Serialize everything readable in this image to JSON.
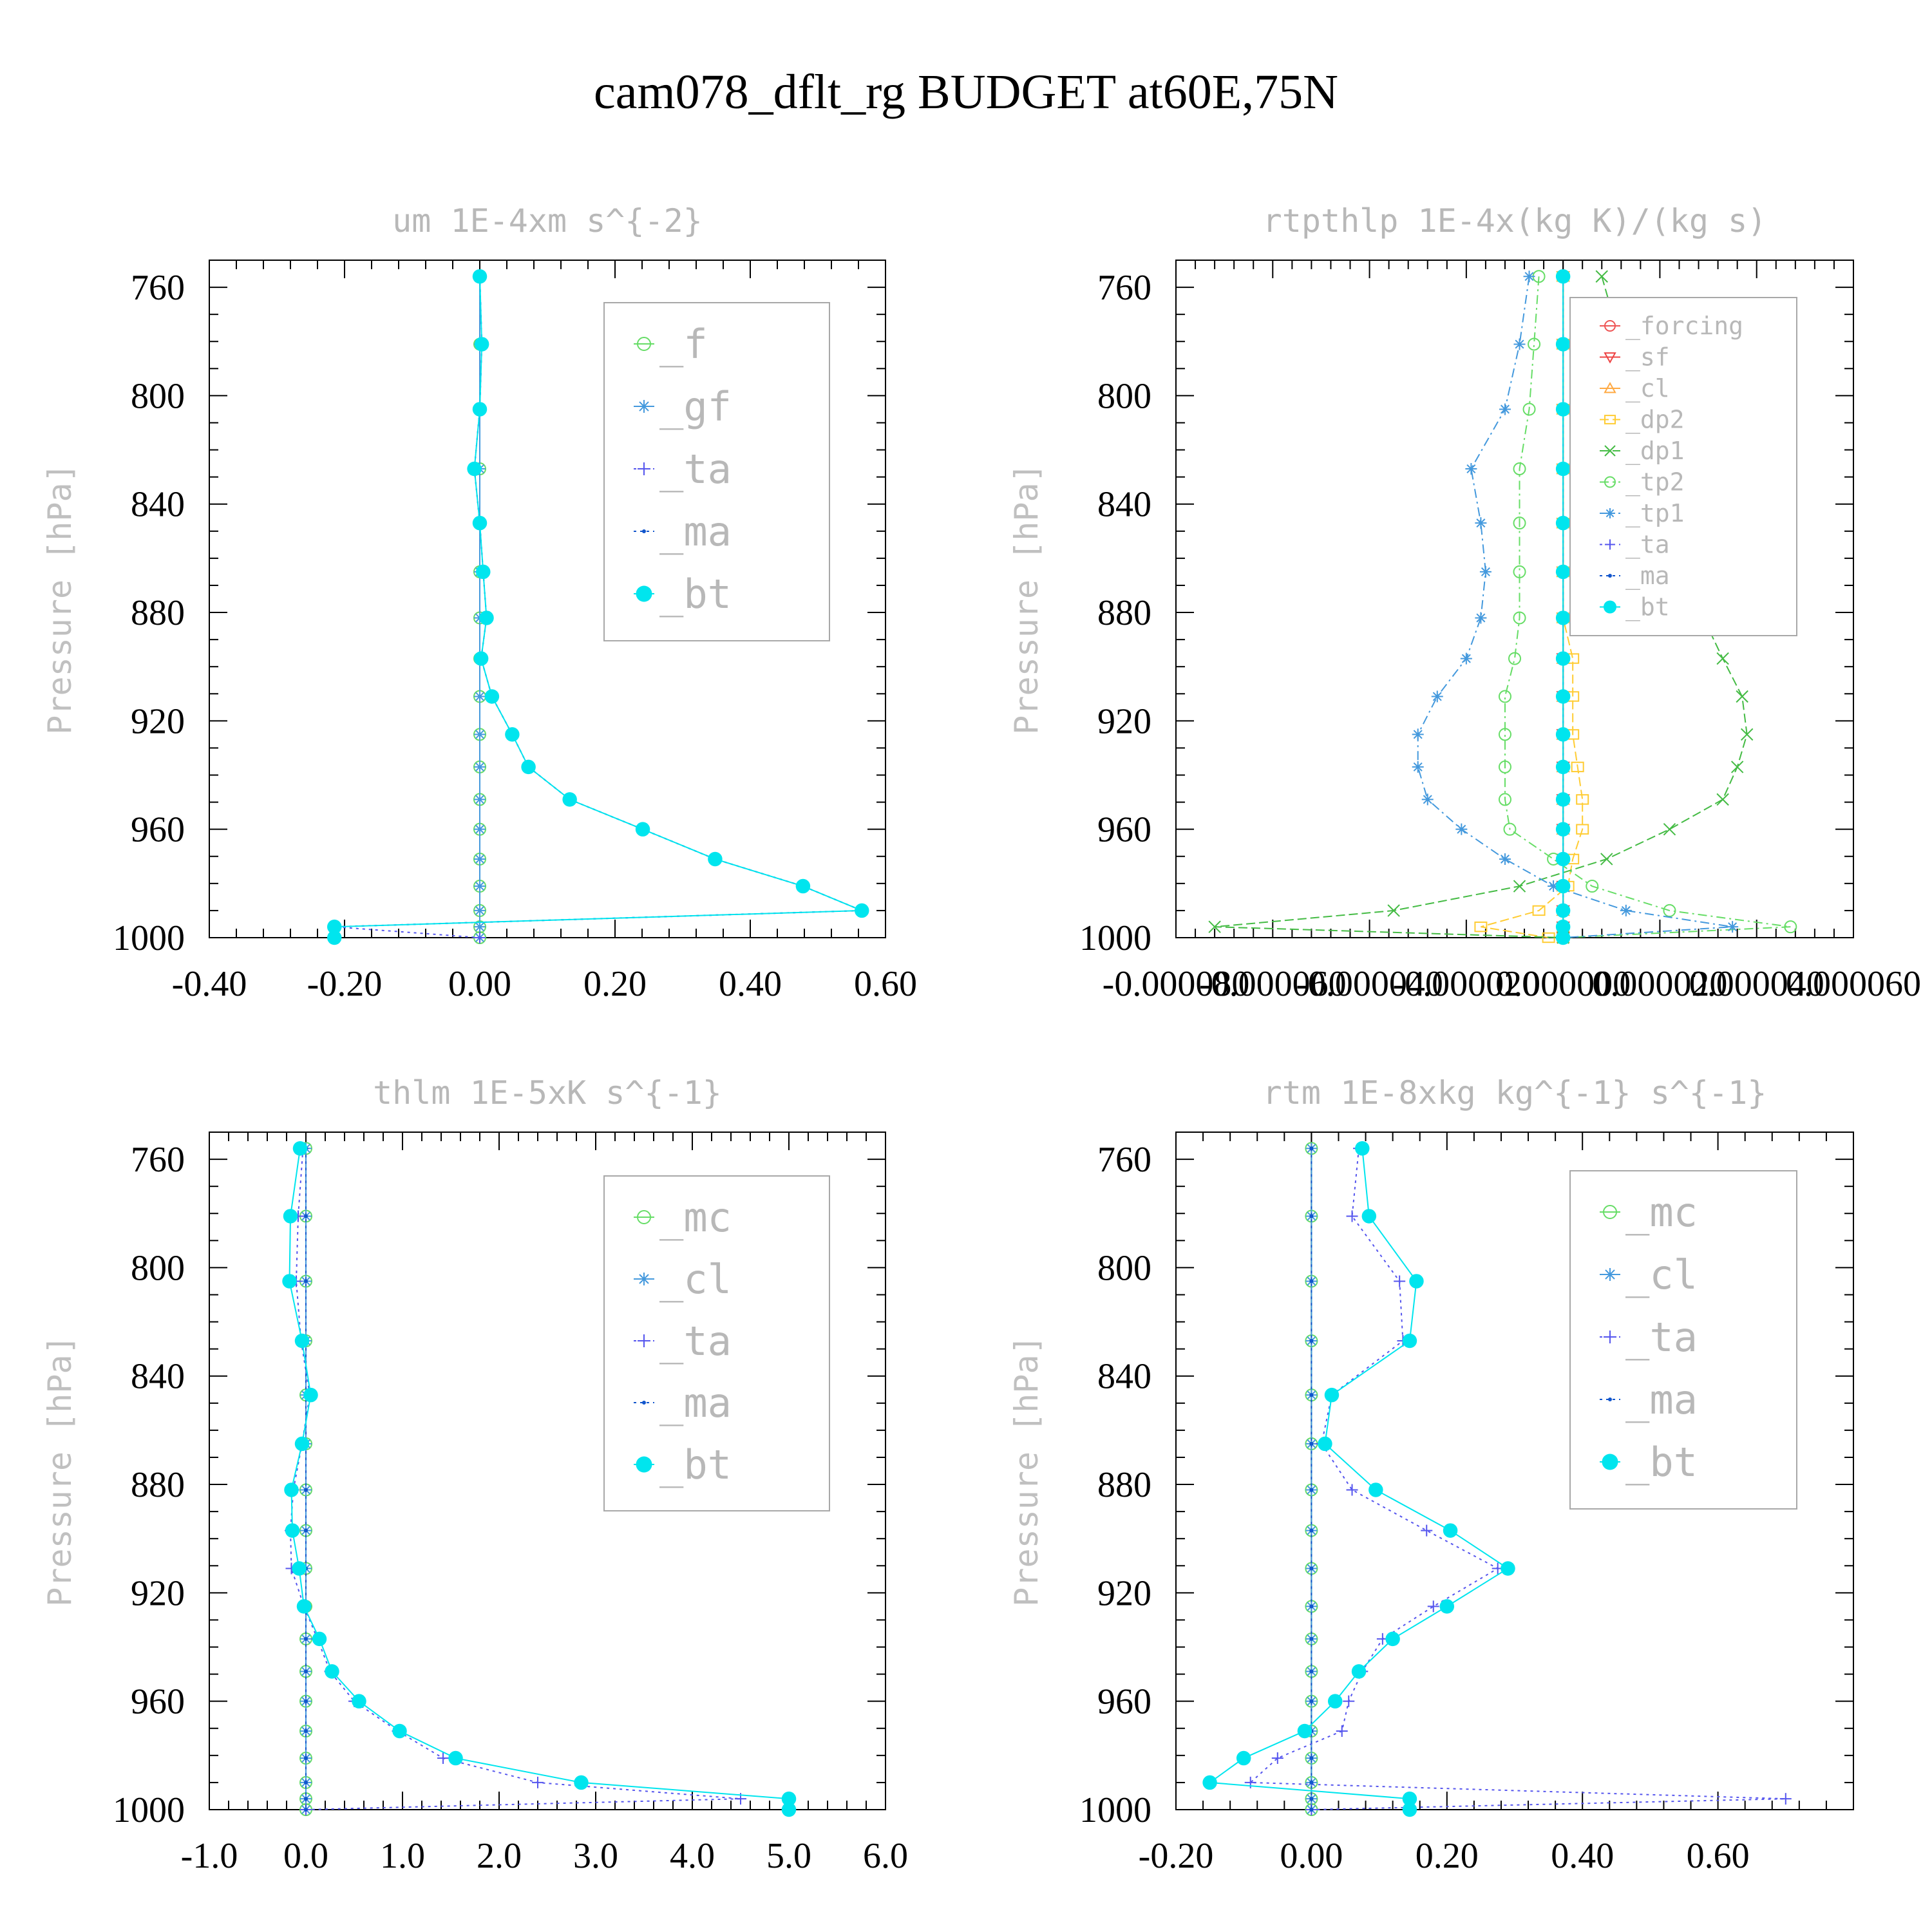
{
  "figure_title": "cam078_dflt_rg  BUDGET at60E,75N",
  "chart_data": [
    {
      "id": "um",
      "type": "line",
      "title": "um  1E-4xm s^{-2}",
      "ylabel": "Pressure [hPa]",
      "xlabel": "",
      "ylim": [
        1000,
        750
      ],
      "xlim": [
        -0.4,
        0.6
      ],
      "xticks": [
        "-0.40",
        "-0.20",
        "0.00",
        "0.20",
        "0.40",
        "0.60"
      ],
      "yticks": [
        "760",
        "800",
        "840",
        "880",
        "920",
        "960",
        "1000"
      ],
      "legend_position": "top-right",
      "levels": [
        756,
        781,
        805,
        827,
        847,
        865,
        882,
        897,
        911,
        925,
        937,
        949,
        960,
        971,
        981,
        990,
        996,
        1000
      ],
      "series": [
        {
          "name": "_f",
          "color": "#66dd66",
          "marker": "circle",
          "dash": "none",
          "values": [
            0,
            0,
            0,
            0,
            0,
            0,
            0,
            0,
            0,
            0,
            0,
            0,
            0,
            0,
            0,
            0,
            0,
            0
          ]
        },
        {
          "name": "_gf",
          "color": "#4499dd",
          "marker": "star",
          "dash": "none",
          "values": [
            0,
            0,
            0,
            0,
            0,
            0,
            0,
            0,
            0,
            0,
            0,
            0,
            0,
            0,
            0,
            0,
            0,
            0
          ]
        },
        {
          "name": "_ta",
          "color": "#5555ee",
          "marker": "plus",
          "dash": "4,6",
          "values": [
            0.0,
            0.003,
            0.0,
            -0.008,
            0.0,
            0.005,
            0.01,
            0.002,
            0.018,
            0.048,
            0.072,
            0.133,
            0.241,
            0.348,
            0.478,
            0.565,
            -0.215,
            0.0
          ]
        },
        {
          "name": "_ma",
          "color": "#1155cc",
          "marker": "dot",
          "dash": "4,6",
          "values": [
            0.0,
            0.003,
            0.0,
            -0.008,
            0.0,
            0.005,
            0.01,
            0.002,
            0.018,
            0.048,
            0.072,
            0.133,
            0.241,
            0.348,
            0.478,
            0.565,
            -0.215,
            -0.215
          ]
        },
        {
          "name": "_bt",
          "color": "#00e5ee",
          "marker": "filled",
          "dash": "none",
          "values": [
            0.0,
            0.003,
            0.0,
            -0.008,
            0.0,
            0.005,
            0.01,
            0.002,
            0.018,
            0.048,
            0.072,
            0.133,
            0.241,
            0.348,
            0.478,
            0.565,
            -0.215,
            -0.215
          ]
        }
      ]
    },
    {
      "id": "rtpthlp",
      "type": "line",
      "title": "rtpthlp  1E-4x(kg K)/(kg s)",
      "ylabel": "Pressure [hPa]",
      "xlabel": "",
      "ylim": [
        1000,
        750
      ],
      "xlim": [
        -8e-05,
        6e-05
      ],
      "xticks": [
        "-0.000080",
        "-0.000060",
        "-0.000040",
        "-0.000020",
        "0.000000",
        "0.000020",
        "0.000040",
        "0.000060"
      ],
      "yticks": [
        "760",
        "800",
        "840",
        "880",
        "920",
        "960",
        "1000"
      ],
      "legend_position": "top-right",
      "levels": [
        756,
        781,
        805,
        827,
        847,
        865,
        882,
        897,
        911,
        925,
        937,
        949,
        960,
        971,
        981,
        990,
        996,
        1000
      ],
      "series": [
        {
          "name": "_forcing",
          "color": "#ee5555",
          "marker": "circle",
          "dash": "none",
          "values": [
            0,
            0,
            0,
            0,
            0,
            0,
            0,
            0,
            0,
            0,
            0,
            0,
            0,
            0,
            0,
            0,
            0,
            0
          ]
        },
        {
          "name": "_sf",
          "color": "#ee4444",
          "marker": "tri-down",
          "dash": "none",
          "values": [
            0,
            0,
            0,
            0,
            0,
            0,
            0,
            0,
            0,
            0,
            0,
            0,
            0,
            0,
            0,
            0,
            0,
            0
          ]
        },
        {
          "name": "_cl",
          "color": "#ffaa44",
          "marker": "triangle",
          "dash": "none",
          "values": [
            0,
            0,
            0,
            0,
            0,
            0,
            0,
            0,
            0,
            0,
            0,
            0,
            0,
            0,
            0,
            0,
            0,
            0
          ]
        },
        {
          "name": "_dp2",
          "color": "#ffcc33",
          "marker": "square",
          "dash": "14,6",
          "values": [
            0,
            0,
            0,
            0,
            0,
            0,
            0,
            2e-06,
            2e-06,
            2e-06,
            3e-06,
            4e-06,
            4e-06,
            2e-06,
            1e-06,
            -5e-06,
            -1.7e-05,
            -3e-06
          ]
        },
        {
          "name": "_dp1",
          "color": "#44bb44",
          "marker": "cross",
          "dash": "14,6",
          "values": [
            8e-06,
            1.2e-05,
            1.6e-05,
            1.7e-05,
            2e-05,
            2.4e-05,
            2.9e-05,
            3.3e-05,
            3.7e-05,
            3.8e-05,
            3.6e-05,
            3.3e-05,
            2.2e-05,
            9e-06,
            -9e-06,
            -3.5e-05,
            -7.2e-05,
            0.0
          ]
        },
        {
          "name": "_tp2",
          "color": "#66dd66",
          "marker": "circle",
          "dash": "14,6,3,6",
          "values": [
            -5e-06,
            -6e-06,
            -7e-06,
            -9e-06,
            -9e-06,
            -9e-06,
            -9e-06,
            -1e-05,
            -1.2e-05,
            -1.2e-05,
            -1.2e-05,
            -1.2e-05,
            -1.1e-05,
            -2e-06,
            6e-06,
            2.2e-05,
            4.7e-05,
            0.0
          ]
        },
        {
          "name": "_tp1",
          "color": "#4499dd",
          "marker": "star",
          "dash": "14,6,3,6",
          "values": [
            -7e-06,
            -9e-06,
            -1.2e-05,
            -1.9e-05,
            -1.7e-05,
            -1.6e-05,
            -1.7e-05,
            -2e-05,
            -2.6e-05,
            -3e-05,
            -3e-05,
            -2.8e-05,
            -2.1e-05,
            -1.2e-05,
            -2e-06,
            1.3e-05,
            3.5e-05,
            0.0
          ]
        },
        {
          "name": "_ta",
          "color": "#5555ee",
          "marker": "plus",
          "dash": "4,6",
          "values": [
            0,
            0,
            0,
            0,
            0,
            0,
            0,
            0,
            0,
            0,
            0,
            0,
            0,
            0,
            0,
            0,
            0,
            0
          ]
        },
        {
          "name": "_ma",
          "color": "#1155cc",
          "marker": "dot",
          "dash": "4,6",
          "values": [
            0,
            0,
            0,
            0,
            0,
            0,
            0,
            0,
            0,
            0,
            0,
            0,
            0,
            0,
            0,
            0,
            0,
            0
          ]
        },
        {
          "name": "_bt",
          "color": "#00e5ee",
          "marker": "filled",
          "dash": "none",
          "values": [
            0,
            0,
            0,
            0,
            0,
            0,
            0,
            0,
            0,
            0,
            0,
            0,
            0,
            0,
            0,
            0,
            0,
            0
          ]
        }
      ]
    },
    {
      "id": "thlm",
      "type": "line",
      "title": "thlm  1E-5xK s^{-1}",
      "ylabel": "Pressure [hPa]",
      "xlabel": "",
      "ylim": [
        1000,
        750
      ],
      "xlim": [
        -1.0,
        6.0
      ],
      "xticks": [
        "-1.0",
        "0.0",
        "1.0",
        "2.0",
        "3.0",
        "4.0",
        "5.0",
        "6.0"
      ],
      "yticks": [
        "760",
        "800",
        "840",
        "880",
        "920",
        "960",
        "1000"
      ],
      "legend_position": "top-right",
      "levels": [
        756,
        781,
        805,
        827,
        847,
        865,
        882,
        897,
        911,
        925,
        937,
        949,
        960,
        971,
        981,
        990,
        996,
        1000
      ],
      "series": [
        {
          "name": "_mc",
          "color": "#66dd66",
          "marker": "circle",
          "dash": "none",
          "values": [
            0,
            0,
            0,
            0,
            0,
            0,
            0,
            0,
            0,
            0,
            0,
            0,
            0,
            0,
            0,
            0,
            0,
            0
          ]
        },
        {
          "name": "_cl",
          "color": "#4499dd",
          "marker": "star",
          "dash": "none",
          "values": [
            0,
            0,
            0,
            0,
            0,
            0,
            0,
            0,
            0,
            0,
            0,
            0,
            0,
            0,
            0,
            0,
            0,
            0
          ]
        },
        {
          "name": "_ta",
          "color": "#5555ee",
          "marker": "plus",
          "dash": "4,6",
          "values": [
            -0.03,
            -0.08,
            -0.1,
            -0.05,
            0.04,
            -0.04,
            -0.13,
            -0.16,
            -0.15,
            -0.02,
            0.12,
            0.25,
            0.5,
            0.95,
            1.42,
            2.4,
            4.5,
            0.0
          ]
        },
        {
          "name": "_ma",
          "color": "#1155cc",
          "marker": "dot",
          "dash": "4,6",
          "values": [
            0,
            0,
            0,
            0,
            0,
            0,
            0,
            0,
            0,
            0,
            0,
            0,
            0,
            0,
            0,
            0,
            0,
            0
          ]
        },
        {
          "name": "_bt",
          "color": "#00e5ee",
          "marker": "filled",
          "dash": "none",
          "values": [
            -0.06,
            -0.16,
            -0.17,
            -0.04,
            0.05,
            -0.04,
            -0.15,
            -0.14,
            -0.07,
            -0.02,
            0.14,
            0.27,
            0.55,
            0.97,
            1.55,
            2.85,
            5.0,
            5.0
          ]
        }
      ]
    },
    {
      "id": "rtm",
      "type": "line",
      "title": "rtm  1E-8xkg kg^{-1} s^{-1}",
      "ylabel": "Pressure [hPa]",
      "xlabel": "",
      "ylim": [
        1000,
        750
      ],
      "xlim": [
        -0.2,
        0.8
      ],
      "xticks": [
        "-0.20",
        "0.00",
        "0.20",
        "0.40",
        "0.60"
      ],
      "yticks": [
        "760",
        "800",
        "840",
        "880",
        "920",
        "960",
        "1000"
      ],
      "legend_position": "top-right",
      "levels": [
        756,
        781,
        805,
        827,
        847,
        865,
        882,
        897,
        911,
        925,
        937,
        949,
        960,
        971,
        981,
        990,
        996,
        1000
      ],
      "series": [
        {
          "name": "_mc",
          "color": "#66dd66",
          "marker": "circle",
          "dash": "none",
          "values": [
            0,
            0,
            0,
            0,
            0,
            0,
            0,
            0,
            0,
            0,
            0,
            0,
            0,
            0,
            0,
            0,
            0,
            0
          ]
        },
        {
          "name": "_cl",
          "color": "#4499dd",
          "marker": "star",
          "dash": "none",
          "values": [
            0,
            0,
            0,
            0,
            0,
            0,
            0,
            0,
            0,
            0,
            0,
            0,
            0,
            0,
            0,
            0,
            0,
            0
          ]
        },
        {
          "name": "_ta",
          "color": "#5555ee",
          "marker": "plus",
          "dash": "4,6",
          "values": [
            0.07,
            0.06,
            0.13,
            0.135,
            0.03,
            0.015,
            0.06,
            0.17,
            0.275,
            0.18,
            0.105,
            0.075,
            0.055,
            0.045,
            -0.05,
            -0.09,
            0.7,
            0.0
          ]
        },
        {
          "name": "_ma",
          "color": "#1155cc",
          "marker": "dot",
          "dash": "4,6",
          "values": [
            0,
            0,
            0,
            0,
            0,
            0,
            0,
            0,
            0,
            0,
            0,
            0,
            0,
            0,
            0,
            0,
            0,
            0
          ]
        },
        {
          "name": "_bt",
          "color": "#00e5ee",
          "marker": "filled",
          "dash": "none",
          "values": [
            0.075,
            0.085,
            0.155,
            0.145,
            0.03,
            0.02,
            0.095,
            0.205,
            0.29,
            0.2,
            0.12,
            0.07,
            0.035,
            -0.01,
            -0.1,
            -0.15,
            0.145,
            0.145
          ]
        }
      ]
    }
  ]
}
